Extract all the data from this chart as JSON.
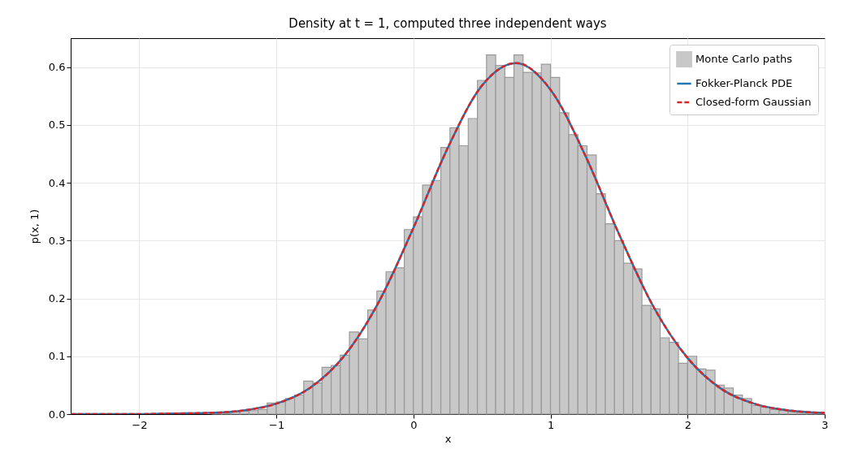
{
  "chart_data": {
    "type": "histogram",
    "title": "Density at t = 1, computed three independent ways",
    "xlabel": "x",
    "ylabel": "p(x, 1)",
    "bins": [
      -1.6,
      -1.5333,
      -1.4667,
      -1.4,
      -1.3333,
      -1.2667,
      -1.2,
      -1.1333,
      -1.0667,
      -1,
      -0.9333,
      -0.8667,
      -0.8,
      -0.7333,
      -0.6667,
      -0.6,
      -0.5333,
      -0.4667,
      -0.4,
      -0.3333,
      -0.2667,
      -0.2,
      -0.1333,
      -0.0667,
      0,
      0.0667,
      0.1333,
      0.2,
      0.2667,
      0.3333,
      0.4,
      0.4667,
      0.5333,
      0.6,
      0.6667,
      0.7333,
      0.8,
      0.8667,
      0.9333,
      1,
      1.0667,
      1.1333,
      1.2,
      1.2667,
      1.3333,
      1.4,
      1.4667,
      1.5333,
      1.6,
      1.6667,
      1.7333,
      1.8,
      1.8667,
      1.9333,
      2,
      2.0667,
      2.1333,
      2.2,
      2.2667,
      2.3333,
      2.4,
      2.4667,
      2.5333,
      2.6,
      2.6667,
      2.7333,
      2.8,
      2.8667,
      2.9333,
      3
    ],
    "series": [
      {
        "name": "Monte Carlo paths",
        "color": "#c8c8c8",
        "values": [
          null,
          null,
          0.002,
          0.002,
          0.004,
          0.005,
          0.006,
          0.008,
          0.019,
          0.021,
          0.027,
          0.033,
          0.057,
          0.054,
          0.081,
          0.084,
          0.102,
          0.142,
          0.13,
          0.18,
          0.213,
          0.246,
          0.253,
          0.319,
          0.341,
          0.396,
          0.404,
          0.461,
          0.495,
          0.464,
          0.511,
          0.577,
          0.621,
          0.603,
          0.582,
          0.621,
          0.591,
          0.59,
          0.605,
          0.582,
          0.521,
          0.483,
          0.464,
          0.448,
          0.381,
          0.329,
          0.3,
          0.261,
          0.251,
          0.188,
          0.182,
          0.132,
          0.124,
          0.088,
          0.1,
          0.078,
          0.076,
          0.05,
          0.045,
          0.033,
          0.027,
          0.015,
          0.012,
          0.008,
          0.006,
          0.004,
          0.003,
          0.002,
          0.001
        ]
      },
      {
        "type": "line",
        "name": "Fokker-Planck PDE",
        "color": "#1f77b4",
        "line_style": "solid",
        "x": [
          -2.5,
          -2.25,
          -2,
          -1.75,
          -1.5,
          -1.25,
          -1,
          -0.75,
          -0.5,
          -0.25,
          0,
          0.25,
          0.5,
          0.75,
          1,
          1.25,
          1.5,
          1.75,
          2,
          2.25,
          2.5,
          2.75,
          3
        ],
        "values": [
          0,
          0,
          0,
          0.001,
          0.002,
          0.006,
          0.018,
          0.046,
          0.102,
          0.195,
          0.322,
          0.46,
          0.568,
          0.607,
          0.561,
          0.449,
          0.311,
          0.186,
          0.097,
          0.043,
          0.017,
          0.006,
          0.002
        ]
      },
      {
        "type": "line",
        "name": "Closed-form Gaussian",
        "color": "#d62728",
        "line_style": "dashed",
        "x": [
          -2.5,
          -2.25,
          -2,
          -1.75,
          -1.5,
          -1.25,
          -1,
          -0.75,
          -0.5,
          -0.25,
          0,
          0.25,
          0.5,
          0.75,
          1,
          1.25,
          1.5,
          1.75,
          2,
          2.25,
          2.5,
          2.75,
          3
        ],
        "values": [
          0,
          0,
          0,
          0.001,
          0.002,
          0.006,
          0.018,
          0.046,
          0.102,
          0.195,
          0.322,
          0.46,
          0.568,
          0.607,
          0.561,
          0.449,
          0.311,
          0.186,
          0.097,
          0.043,
          0.017,
          0.006,
          0.002
        ]
      }
    ],
    "xlim": [
      -2.5,
      3
    ],
    "xticks": [
      {
        "value": -2,
        "label": "−2"
      },
      {
        "value": -1,
        "label": "−1"
      },
      {
        "value": 0,
        "label": "0"
      },
      {
        "value": 1,
        "label": "1"
      },
      {
        "value": 2,
        "label": "2"
      },
      {
        "value": 3,
        "label": "3"
      }
    ],
    "ylim": [
      0,
      0.65
    ],
    "yticks": [
      {
        "value": 0,
        "label": "0.0"
      },
      {
        "value": 0.1,
        "label": "0.1"
      },
      {
        "value": 0.2,
        "label": "0.2"
      },
      {
        "value": 0.3,
        "label": "0.3"
      },
      {
        "value": 0.4,
        "label": "0.4"
      },
      {
        "value": 0.5,
        "label": "0.5"
      },
      {
        "value": 0.6,
        "label": "0.6"
      }
    ],
    "grid": true,
    "legend": "top right"
  }
}
